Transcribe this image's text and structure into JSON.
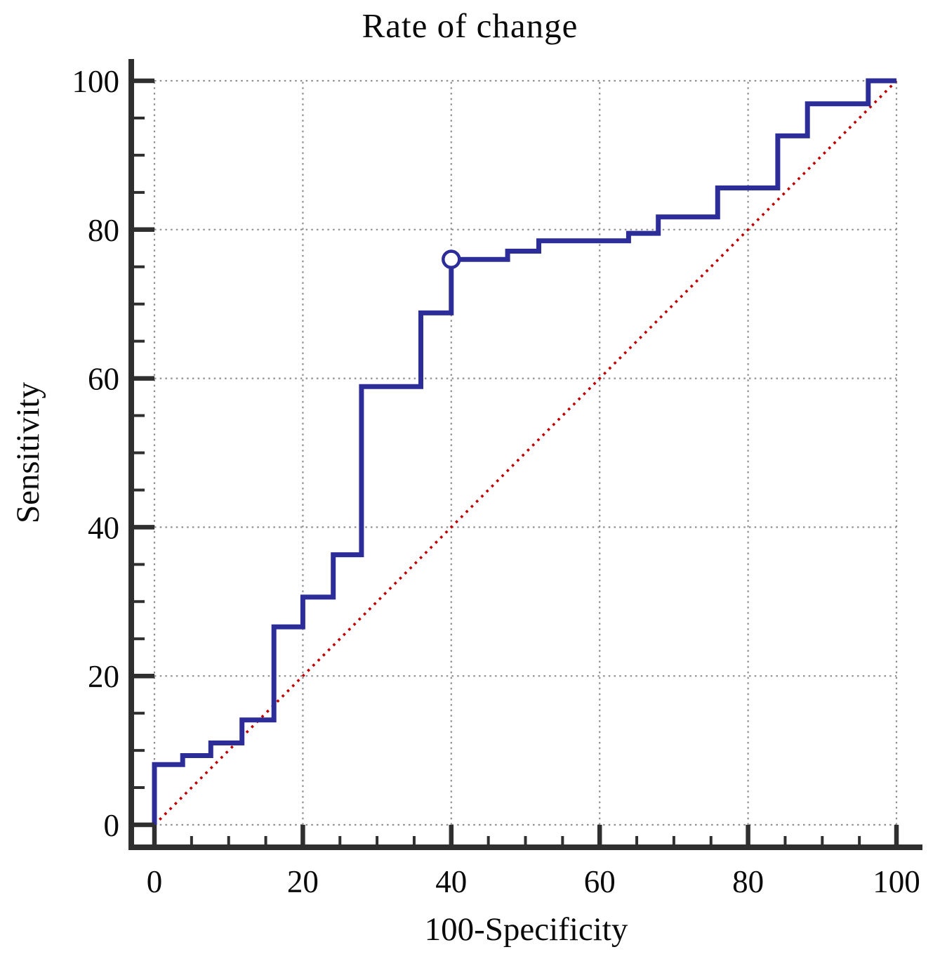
{
  "chart_data": {
    "type": "line",
    "subtype": "roc-step-curve",
    "title": "Rate of change",
    "xlabel": "100-Specificity",
    "ylabel": "Sensitivity",
    "xlim": [
      0,
      100
    ],
    "ylim": [
      0,
      100
    ],
    "x_major_ticks": [
      0,
      20,
      40,
      60,
      80,
      100
    ],
    "y_major_ticks": [
      0,
      20,
      40,
      60,
      80,
      100
    ],
    "minor_tick_step": 5,
    "grid": {
      "visible": true,
      "style": "dotted",
      "every": 20,
      "color": "#8f8f8f"
    },
    "series": [
      {
        "name": "roc-curve",
        "color": "#2d2d9a",
        "style": "solid-step",
        "points": [
          [
            0,
            0
          ],
          [
            0,
            8.1
          ],
          [
            3.8,
            8.1
          ],
          [
            3.8,
            9.3
          ],
          [
            7.6,
            9.3
          ],
          [
            7.6,
            11.0
          ],
          [
            11.8,
            11.0
          ],
          [
            11.8,
            14.1
          ],
          [
            16.1,
            14.1
          ],
          [
            16.1,
            26.6
          ],
          [
            20,
            26.6
          ],
          [
            20,
            30.6
          ],
          [
            24.1,
            30.6
          ],
          [
            24.1,
            36.3
          ],
          [
            27.9,
            36.3
          ],
          [
            27.9,
            58.9
          ],
          [
            35.9,
            58.9
          ],
          [
            35.9,
            68.8
          ],
          [
            40,
            68.8
          ],
          [
            40,
            76.0
          ],
          [
            47.6,
            76.0
          ],
          [
            47.6,
            77.1
          ],
          [
            51.8,
            77.1
          ],
          [
            51.8,
            78.5
          ],
          [
            63.9,
            78.5
          ],
          [
            63.9,
            79.5
          ],
          [
            67.9,
            79.5
          ],
          [
            67.9,
            81.7
          ],
          [
            75.9,
            81.7
          ],
          [
            75.9,
            85.6
          ],
          [
            84,
            85.6
          ],
          [
            84,
            92.6
          ],
          [
            88,
            92.6
          ],
          [
            88,
            96.9
          ],
          [
            96.2,
            96.9
          ],
          [
            96.2,
            100
          ],
          [
            100,
            100
          ]
        ]
      },
      {
        "name": "reference-diagonal",
        "color": "#c00000",
        "style": "dotted",
        "points": [
          [
            0,
            0
          ],
          [
            100,
            100
          ]
        ]
      }
    ],
    "operating_point": {
      "x": 40,
      "y": 76.0,
      "marker": "open-circle",
      "fill": "#ffffff",
      "stroke": "#2d2d9a"
    },
    "axis_color": "#2f2f2f",
    "legend": "none"
  }
}
